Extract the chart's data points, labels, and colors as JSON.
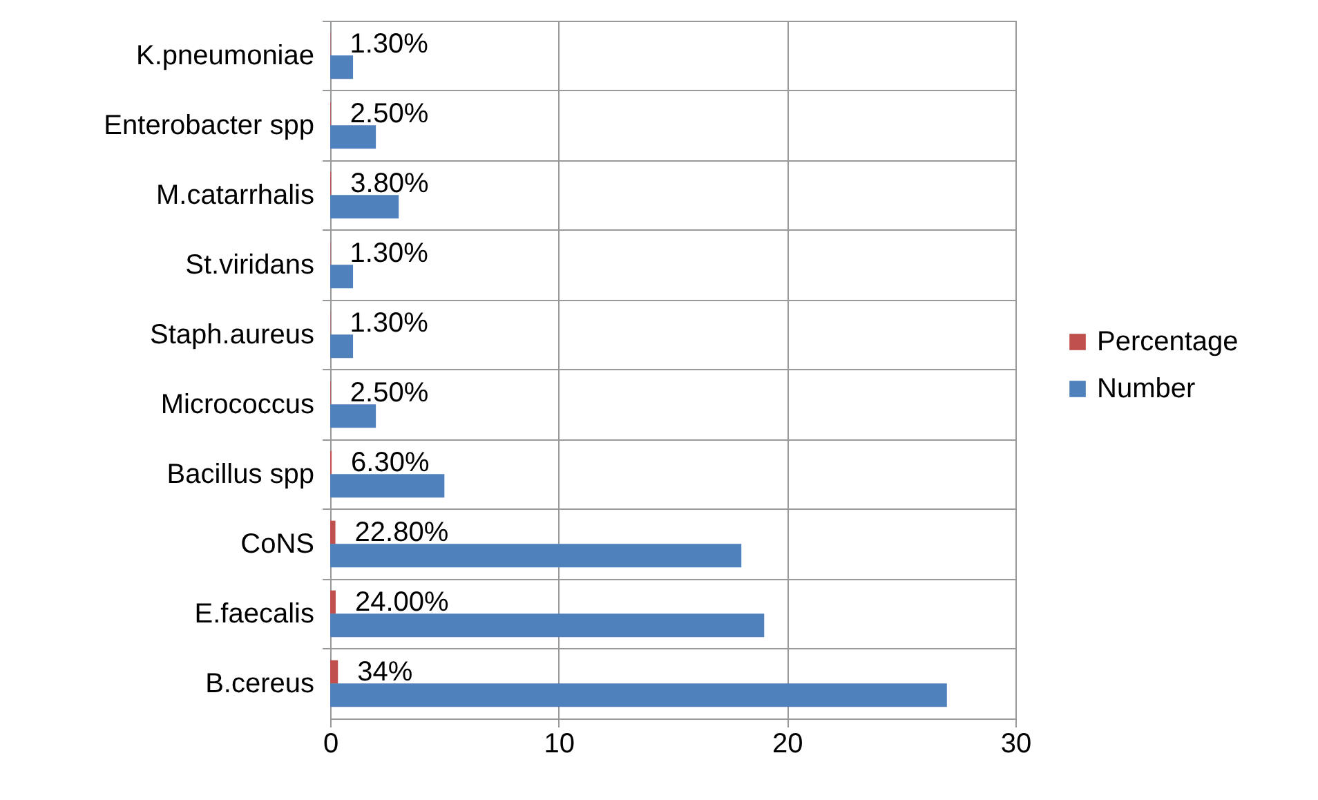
{
  "chart_data": {
    "type": "bar",
    "orientation": "horizontal",
    "categories": [
      "K.pneumoniae",
      "Enterobacter spp",
      "M.catarrhalis",
      "St.viridans",
      "Staph.aureus",
      "Micrococcus",
      "Bacillus spp",
      "CoNS",
      "E.faecalis",
      "B.cereus"
    ],
    "series": [
      {
        "name": "Percentage",
        "color": "#c0504d",
        "values": [
          0.013,
          0.025,
          0.038,
          0.013,
          0.013,
          0.025,
          0.063,
          0.228,
          0.24,
          0.34
        ],
        "value_labels": [
          "1.30%",
          "2.50%",
          "3.80%",
          "1.30%",
          "1.30%",
          "2.50%",
          "6.30%",
          "22.80%",
          "24.00%",
          "34%"
        ]
      },
      {
        "name": "Number",
        "color": "#4f81bd",
        "values": [
          1,
          2,
          3,
          1,
          1,
          2,
          5,
          18,
          19,
          27
        ]
      }
    ],
    "xlim": [
      0,
      30
    ],
    "xticks": [
      0,
      10,
      20,
      30
    ],
    "grid": true,
    "legend": "right"
  }
}
